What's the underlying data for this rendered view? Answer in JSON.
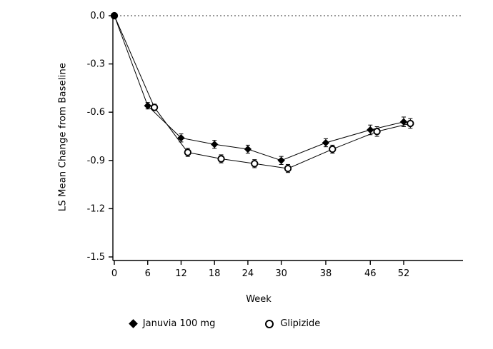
{
  "chart_data": {
    "type": "line",
    "title": "",
    "xlabel": "Week",
    "ylabel": "LS Mean Change from Baseline",
    "x_tick_values": [
      0,
      6,
      12,
      18,
      24,
      30,
      38,
      46,
      52
    ],
    "x_tick_labels": [
      "0",
      "6",
      "12",
      "18",
      "24",
      "30",
      "38",
      "46",
      "52"
    ],
    "y_tick_values": [
      0.0,
      -0.3,
      -0.6,
      -0.9,
      -1.2,
      -1.5
    ],
    "y_tick_labels": [
      "0.0",
      "-0.3",
      "-0.6",
      "-0.9",
      "-1.2",
      "-1.5"
    ],
    "xlim": [
      0,
      52
    ],
    "ylim": [
      -1.5,
      0.0
    ],
    "grid": false,
    "reference_line_y": 0.0,
    "reference_line_style": "dotted",
    "legend_position": "bottom",
    "axis_color": "#000000",
    "series": [
      {
        "name": "Januvia 100 mg",
        "marker": "filled-diamond",
        "color": "#000000",
        "x_offset_weeks": 0,
        "x": [
          0,
          6,
          12,
          18,
          24,
          30,
          38,
          46,
          52
        ],
        "y": [
          0.0,
          -0.56,
          -0.76,
          -0.8,
          -0.83,
          -0.9,
          -0.79,
          -0.71,
          -0.66
        ],
        "err": [
          0,
          0.02,
          0.025,
          0.025,
          0.025,
          0.025,
          0.025,
          0.03,
          0.03
        ]
      },
      {
        "name": "Glipizide",
        "marker": "open-circle",
        "color": "#000000",
        "x_offset_weeks": 1.2,
        "x": [
          0,
          6,
          12,
          18,
          24,
          30,
          38,
          46,
          52
        ],
        "y": [
          0.0,
          -0.57,
          -0.85,
          -0.89,
          -0.92,
          -0.95,
          -0.83,
          -0.72,
          -0.67
        ],
        "err": [
          0,
          0.02,
          0.025,
          0.025,
          0.025,
          0.025,
          0.025,
          0.03,
          0.03
        ]
      }
    ]
  }
}
